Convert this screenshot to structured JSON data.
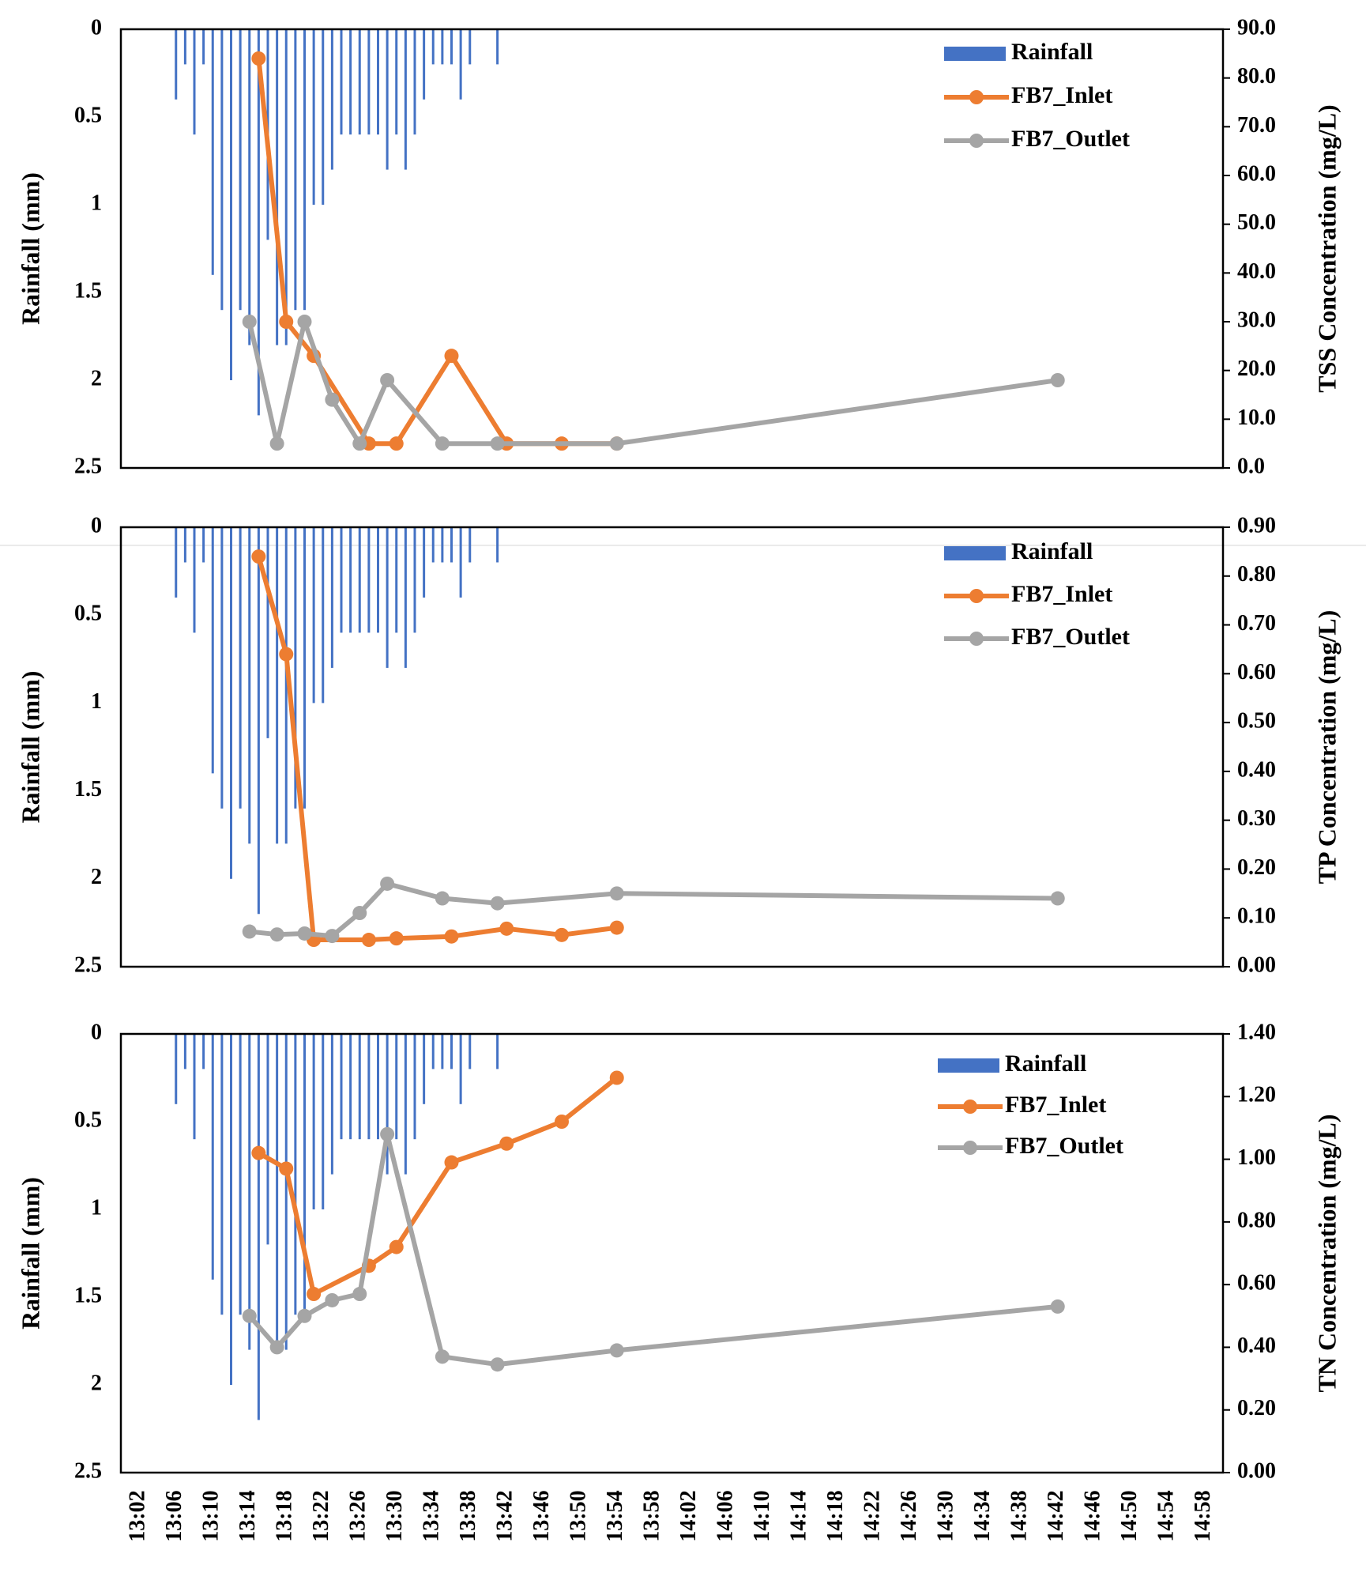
{
  "colors": {
    "rainfall": "#4472C4",
    "inlet": "#ED7D31",
    "outlet": "#A5A5A5",
    "frame": "#000000"
  },
  "chart_data": [
    {
      "type": "line",
      "id": "tss",
      "title": "",
      "xlabel": "",
      "ylabel_left": "Rainfall (mm)",
      "ylabel_right": "TSS Concentration (mg/L)",
      "x_range_minutes": [
        0,
        120
      ],
      "left_ticks": [
        "0",
        "0.5",
        "1",
        "1.5",
        "2",
        "2.5"
      ],
      "right_ticks": [
        "0.0",
        "10.0",
        "20.0",
        "30.0",
        "40.0",
        "50.0",
        "60.0",
        "70.0",
        "80.0",
        "90.0"
      ],
      "ylim_left": [
        0,
        2.5
      ],
      "ylim_right": [
        0,
        90
      ],
      "legend": [
        "Rainfall",
        "FB7_Inlet",
        "FB7_Outlet"
      ],
      "rainfall": {
        "name": "Rainfall",
        "x_minutes": [
          6,
          7,
          8,
          9,
          10,
          11,
          12,
          13,
          14,
          15,
          16,
          17,
          18,
          19,
          20,
          21,
          22,
          23,
          24,
          25,
          26,
          27,
          28,
          29,
          30,
          31,
          32,
          33,
          34,
          35,
          36,
          37,
          38,
          39,
          41
        ],
        "values": [
          0.4,
          0.2,
          0.6,
          0.2,
          1.4,
          1.6,
          2.0,
          1.6,
          1.8,
          2.2,
          1.2,
          1.8,
          1.8,
          1.6,
          1.6,
          1.0,
          1.0,
          0.8,
          0.6,
          0.6,
          0.6,
          0.6,
          0.6,
          0.8,
          0.6,
          0.8,
          0.6,
          0.4,
          0.2,
          0.2,
          0.2,
          0.4,
          0.2,
          0.0,
          0.2
        ]
      },
      "series": [
        {
          "name": "FB7_Inlet",
          "x_minutes": [
            15,
            18,
            21,
            27,
            30,
            36,
            42,
            48,
            54
          ],
          "values": [
            84,
            30,
            23,
            5,
            5,
            23,
            5,
            5,
            5
          ]
        },
        {
          "name": "FB7_Outlet",
          "x_minutes": [
            14,
            17,
            20,
            23,
            26,
            29,
            35,
            41,
            54,
            102
          ],
          "values": [
            30,
            5,
            30,
            14,
            5,
            18,
            5,
            5,
            5,
            18
          ]
        }
      ]
    },
    {
      "type": "line",
      "id": "tp",
      "title": "",
      "xlabel": "",
      "ylabel_left": "Rainfall (mm)",
      "ylabel_right": "TP Concentration (mg/L)",
      "x_range_minutes": [
        0,
        120
      ],
      "left_ticks": [
        "0",
        "0.5",
        "1",
        "1.5",
        "2",
        "2.5"
      ],
      "right_ticks": [
        "0.00",
        "0.10",
        "0.20",
        "0.30",
        "0.40",
        "0.50",
        "0.60",
        "0.70",
        "0.80",
        "0.90"
      ],
      "ylim_left": [
        0,
        2.5
      ],
      "ylim_right": [
        0,
        0.9
      ],
      "legend": [
        "Rainfall",
        "FB7_Inlet",
        "FB7_Outlet"
      ],
      "rainfall": {
        "name": "Rainfall",
        "x_minutes": [
          6,
          7,
          8,
          9,
          10,
          11,
          12,
          13,
          14,
          15,
          16,
          17,
          18,
          19,
          20,
          21,
          22,
          23,
          24,
          25,
          26,
          27,
          28,
          29,
          30,
          31,
          32,
          33,
          34,
          35,
          36,
          37,
          38,
          39,
          41
        ],
        "values": [
          0.4,
          0.2,
          0.6,
          0.2,
          1.4,
          1.6,
          2.0,
          1.6,
          1.8,
          2.2,
          1.2,
          1.8,
          1.8,
          1.6,
          1.6,
          1.0,
          1.0,
          0.8,
          0.6,
          0.6,
          0.6,
          0.6,
          0.6,
          0.8,
          0.6,
          0.8,
          0.6,
          0.4,
          0.2,
          0.2,
          0.2,
          0.4,
          0.2,
          0.0,
          0.2
        ]
      },
      "series": [
        {
          "name": "FB7_Inlet",
          "x_minutes": [
            15,
            18,
            21,
            27,
            30,
            36,
            42,
            48,
            54
          ],
          "values": [
            0.84,
            0.64,
            0.055,
            0.055,
            0.058,
            0.062,
            0.078,
            0.065,
            0.08
          ]
        },
        {
          "name": "FB7_Outlet",
          "x_minutes": [
            14,
            17,
            20,
            23,
            26,
            29,
            35,
            41,
            54,
            102
          ],
          "values": [
            0.072,
            0.066,
            0.068,
            0.063,
            0.11,
            0.17,
            0.14,
            0.13,
            0.15,
            0.14
          ]
        }
      ]
    },
    {
      "type": "line",
      "id": "tn",
      "title": "",
      "xlabel": "",
      "ylabel_left": "Rainfall (mm)",
      "ylabel_right": "TN Concentration (mg/L)",
      "x_range_minutes": [
        0,
        120
      ],
      "left_ticks": [
        "0",
        "0.5",
        "1",
        "1.5",
        "2",
        "2.5"
      ],
      "right_ticks": [
        "0.00",
        "0.20",
        "0.40",
        "0.60",
        "0.80",
        "1.00",
        "1.20",
        "1.40"
      ],
      "ylim_left": [
        0,
        2.5
      ],
      "ylim_right": [
        0,
        1.4
      ],
      "legend": [
        "Rainfall",
        "FB7_Inlet",
        "FB7_Outlet"
      ],
      "x_tick_labels": [
        "13:02",
        "13:06",
        "13:10",
        "13:14",
        "13:18",
        "13:22",
        "13:26",
        "13:30",
        "13:34",
        "13:38",
        "13:42",
        "13:46",
        "13:50",
        "13:54",
        "13:58",
        "14:02",
        "14:06",
        "14:10",
        "14:14",
        "14:18",
        "14:22",
        "14:26",
        "14:30",
        "14:34",
        "14:38",
        "14:42",
        "14:46",
        "14:50",
        "14:54",
        "14:58"
      ],
      "rainfall": {
        "name": "Rainfall",
        "x_minutes": [
          6,
          7,
          8,
          9,
          10,
          11,
          12,
          13,
          14,
          15,
          16,
          17,
          18,
          19,
          20,
          21,
          22,
          23,
          24,
          25,
          26,
          27,
          28,
          29,
          30,
          31,
          32,
          33,
          34,
          35,
          36,
          37,
          38,
          39,
          41
        ],
        "values": [
          0.4,
          0.2,
          0.6,
          0.2,
          1.4,
          1.6,
          2.0,
          1.6,
          1.8,
          2.2,
          1.2,
          1.8,
          1.8,
          1.6,
          1.6,
          1.0,
          1.0,
          0.8,
          0.6,
          0.6,
          0.6,
          0.6,
          0.6,
          0.8,
          0.6,
          0.8,
          0.6,
          0.4,
          0.2,
          0.2,
          0.2,
          0.4,
          0.2,
          0.0,
          0.2
        ]
      },
      "series": [
        {
          "name": "FB7_Inlet",
          "x_minutes": [
            15,
            18,
            21,
            27,
            30,
            36,
            42,
            48,
            54
          ],
          "values": [
            1.02,
            0.97,
            0.57,
            0.66,
            0.72,
            0.99,
            1.05,
            1.12,
            1.26
          ]
        },
        {
          "name": "FB7_Outlet",
          "x_minutes": [
            14,
            17,
            20,
            23,
            26,
            29,
            35,
            41,
            54,
            102
          ],
          "values": [
            0.5,
            0.4,
            0.5,
            0.55,
            0.57,
            1.08,
            0.37,
            0.345,
            0.39,
            0.53
          ]
        }
      ]
    }
  ]
}
